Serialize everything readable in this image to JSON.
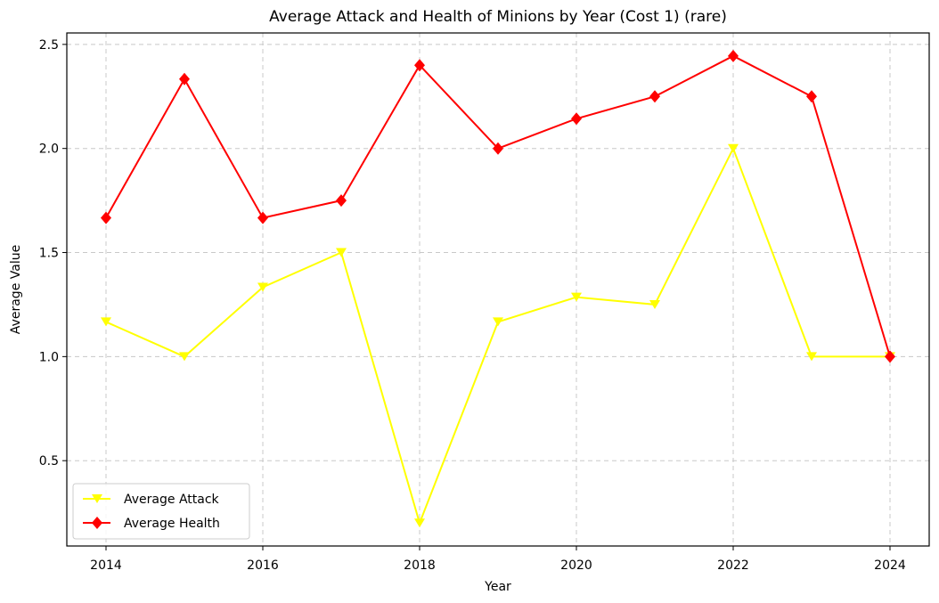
{
  "chart_data": {
    "type": "line",
    "title": "Average Attack and Health of Minions by Year (Cost 1) (rare)",
    "xlabel": "Year",
    "ylabel": "Average Value",
    "x": [
      2014,
      2015,
      2016,
      2017,
      2018,
      2019,
      2020,
      2021,
      2022,
      2023,
      2024
    ],
    "xticks": [
      2014,
      2016,
      2018,
      2020,
      2022,
      2024
    ],
    "yticks": [
      0.5,
      1.0,
      1.5,
      2.0,
      2.5
    ],
    "ytick_labels": [
      "0.5",
      "1.0",
      "1.5",
      "2.0",
      "2.5"
    ],
    "xlim": [
      2013.5,
      2024.5
    ],
    "ylim": [
      0.09,
      2.555
    ],
    "grid": true,
    "legend_position": "lower-left",
    "series": [
      {
        "name": "Average Attack",
        "color": "#ffff00",
        "marker": "triangle-down",
        "values": [
          1.1667,
          1.0,
          1.3333,
          1.5,
          0.2,
          1.1667,
          1.2857,
          1.25,
          2.0,
          1.0,
          1.0
        ]
      },
      {
        "name": "Average Health",
        "color": "#ff0000",
        "marker": "diamond",
        "values": [
          1.6667,
          2.3333,
          1.6667,
          1.75,
          2.4,
          2.0,
          2.1429,
          2.25,
          2.4444,
          2.25,
          1.0
        ]
      }
    ]
  }
}
